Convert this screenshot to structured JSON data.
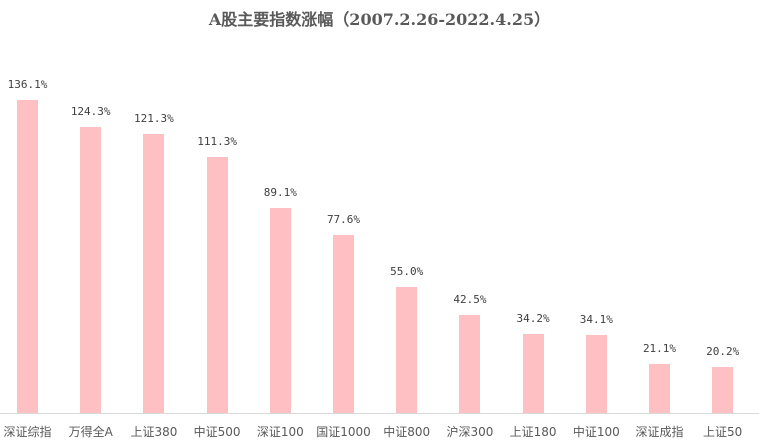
{
  "chart_data": {
    "type": "bar",
    "title": "A股主要指数涨幅（2007.2.26-2022.4.25）",
    "xlabel": "",
    "ylabel": "",
    "grid": false,
    "legend": null,
    "bar_color": "#ffc0c4",
    "categories": [
      "深证综指",
      "万得全A",
      "上证380",
      "中证500",
      "深证100",
      "国证1000",
      "中证800",
      "沪深300",
      "上证180",
      "中证100",
      "深证成指",
      "上证50"
    ],
    "values": [
      136.1,
      124.3,
      121.3,
      111.3,
      89.1,
      77.6,
      55.0,
      42.5,
      34.2,
      34.1,
      21.1,
      20.2
    ],
    "labels": [
      "136.1%",
      "124.3%",
      "121.3%",
      "111.3%",
      "89.1%",
      "77.6%",
      "55.0%",
      "42.5%",
      "34.2%",
      "34.1%",
      "21.1%",
      "20.2%"
    ],
    "ylim": [
      0,
      140
    ]
  }
}
